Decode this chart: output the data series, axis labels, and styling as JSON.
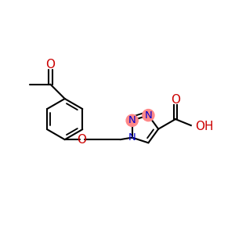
{
  "bg_color": "#ffffff",
  "bond_color": "#000000",
  "bond_lw": 1.5,
  "dbl_sep": 0.055,
  "figsize": [
    3.0,
    3.0
  ],
  "dpi": 100,
  "xlim": [
    -3.2,
    3.8
  ],
  "ylim": [
    -1.8,
    1.5
  ],
  "ring_color": "#000000",
  "N_color": "#0000cc",
  "O_color": "#cc0000",
  "highlight_color": "#ff8888",
  "highlight_r": 0.18
}
